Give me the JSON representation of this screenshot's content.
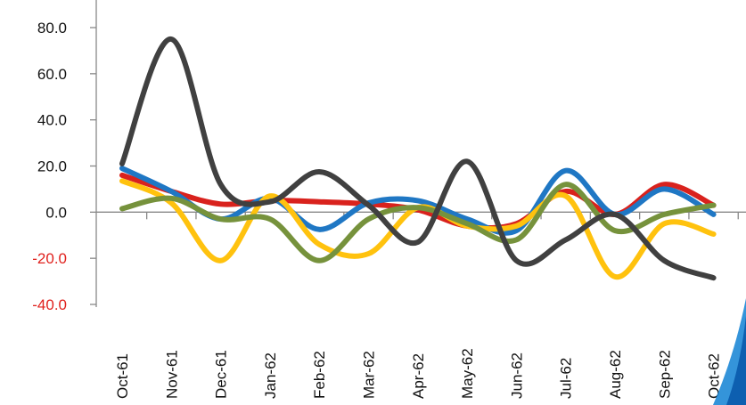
{
  "chart_data": {
    "type": "line",
    "title": "",
    "xlabel": "",
    "ylabel": "",
    "categories": [
      "Oct-61",
      "Nov-61",
      "Dec-61",
      "Jan-62",
      "Feb-62",
      "Mar-62",
      "Apr-62",
      "May-62",
      "Jun-62",
      "Jul-62",
      "Aug-62",
      "Sep-62",
      "Oct-62"
    ],
    "ylim": [
      -40,
      80
    ],
    "y_ticks": [
      {
        "value": 80,
        "label": "80.0",
        "color": "#111111"
      },
      {
        "value": 60,
        "label": "60.0",
        "color": "#111111"
      },
      {
        "value": 40,
        "label": "40.0",
        "color": "#111111"
      },
      {
        "value": 20,
        "label": "20.0",
        "color": "#111111"
      },
      {
        "value": 0,
        "label": "0.0",
        "color": "#111111"
      },
      {
        "value": -20,
        "label": "-20.0",
        "color": "#e0211d"
      },
      {
        "value": -40,
        "label": "-40.0",
        "color": "#e0211d"
      }
    ],
    "grid": false,
    "legend": "none",
    "smooth": true,
    "series": [
      {
        "color": "#d9221d",
        "values": [
          16,
          9,
          3.5,
          5,
          4.5,
          3.5,
          1,
          -6,
          -5,
          9,
          -1,
          12,
          3
        ]
      },
      {
        "color": "#1f77c4",
        "values": [
          19,
          9,
          -3,
          6,
          -7.5,
          4,
          5,
          -3,
          -8,
          18,
          -1,
          10,
          -1
        ]
      },
      {
        "color": "#ffc20e",
        "values": [
          13.5,
          4,
          -21,
          7,
          -14,
          -18,
          2,
          -6,
          -6,
          7,
          -28,
          -5,
          -9.5
        ]
      },
      {
        "color": "#76923c",
        "values": [
          1.5,
          6,
          -3,
          -3,
          -21,
          -3,
          2,
          -5,
          -12,
          12,
          -8,
          -1,
          3
        ]
      },
      {
        "color": "#404040",
        "values": [
          21,
          75,
          12,
          4.5,
          17.5,
          3,
          -13,
          22,
          -21,
          -12,
          -1,
          -21,
          -28.5
        ]
      }
    ]
  }
}
